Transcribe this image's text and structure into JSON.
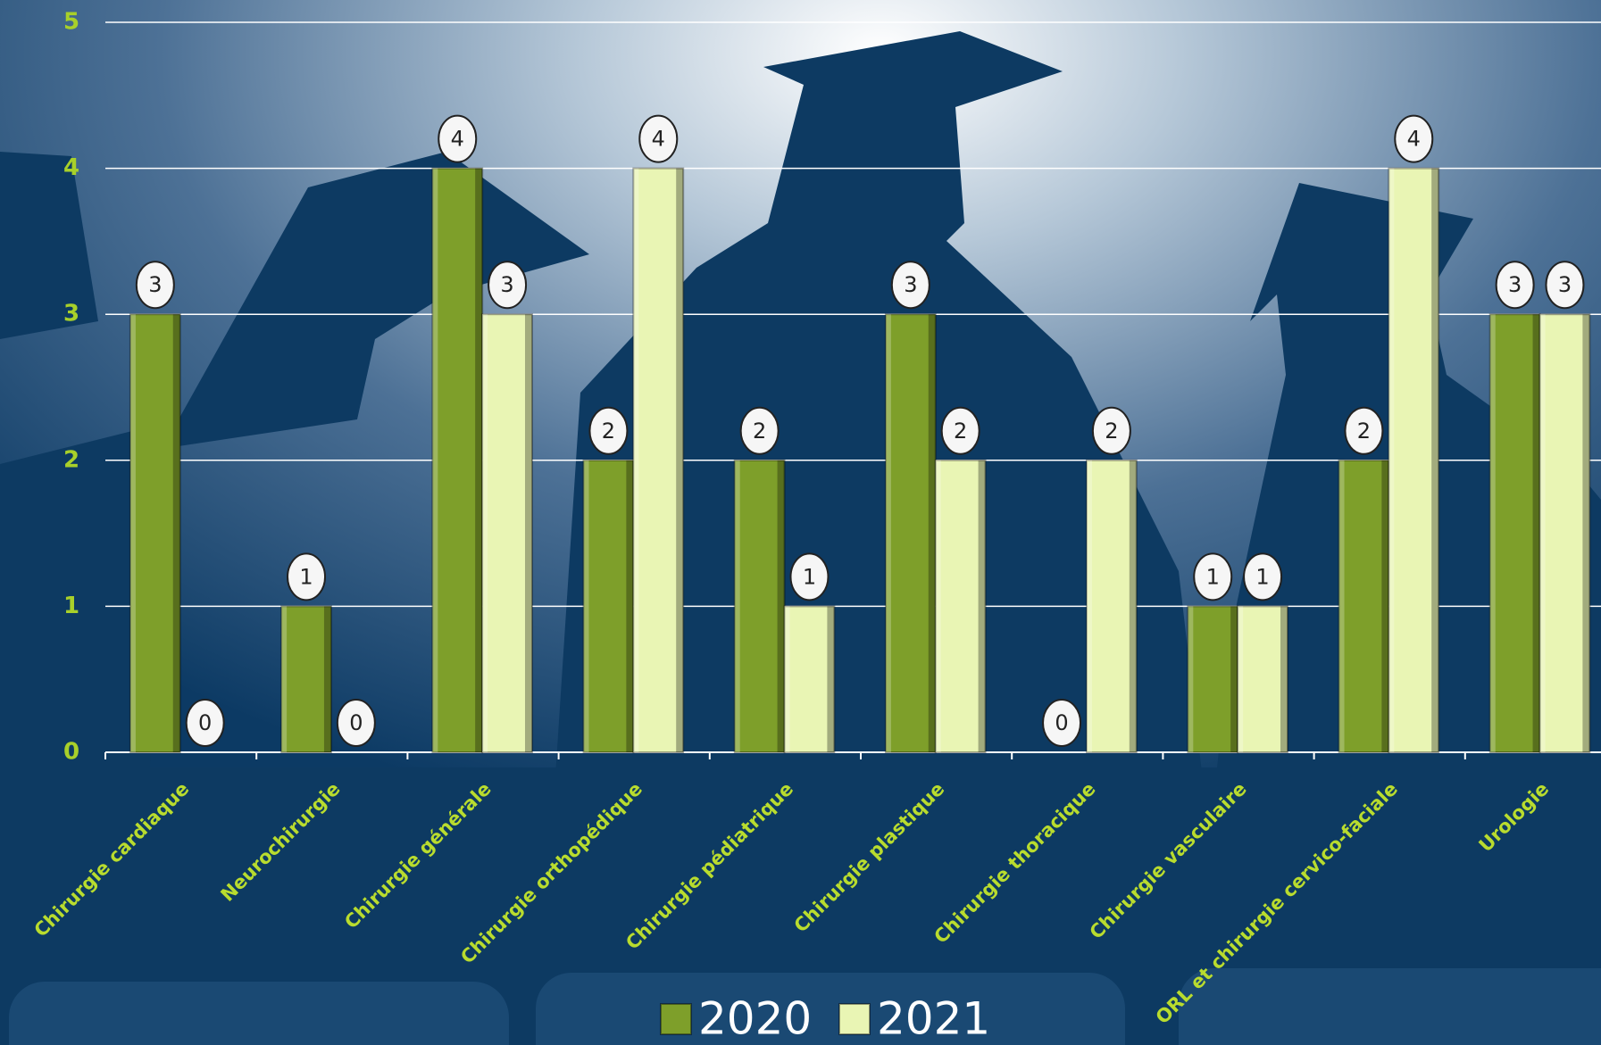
{
  "chart_data": {
    "type": "bar",
    "categories": [
      "Chirurgie cardiaque",
      "Neurochirurgie",
      "Chirurgie générale",
      "Chirurgie orthopédique",
      "Chirurgie pédiatrique",
      "Chirurgie plastique",
      "Chirurgie thoracique",
      "Chirurgie vasculaire",
      "ORL et chirurgie cervico-faciale",
      "Urologie"
    ],
    "series": [
      {
        "name": "2020",
        "color": "#7e9f2a",
        "values": [
          3,
          1,
          4,
          2,
          2,
          3,
          0,
          1,
          2,
          3
        ]
      },
      {
        "name": "2021",
        "color": "#e9f5b4",
        "values": [
          0,
          0,
          3,
          4,
          1,
          2,
          2,
          1,
          4,
          3
        ]
      }
    ],
    "ylim": [
      0,
      5
    ],
    "yticks": [
      0,
      1,
      2,
      3,
      4,
      5
    ],
    "grid": true,
    "legend": "bottom"
  }
}
